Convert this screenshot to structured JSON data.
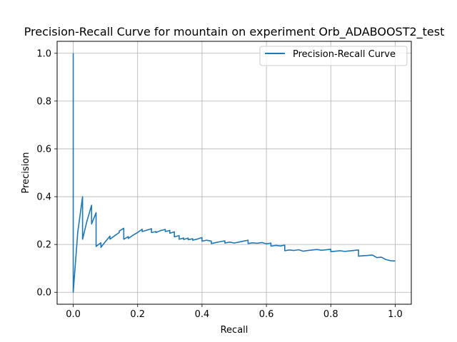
{
  "chart_data": {
    "type": "line",
    "title": "Precision-Recall Curve for mountain on experiment Orb_ADABOOST2_test",
    "xlabel": "Recall",
    "ylabel": "Precision",
    "xlim": [
      -0.05,
      1.05
    ],
    "ylim": [
      -0.05,
      1.05
    ],
    "xticks": [
      0.0,
      0.2,
      0.4,
      0.6,
      0.8,
      1.0
    ],
    "xtick_labels": [
      "0.0",
      "0.2",
      "0.4",
      "0.6",
      "0.8",
      "1.0"
    ],
    "yticks": [
      0.0,
      0.2,
      0.4,
      0.6,
      0.8,
      1.0
    ],
    "ytick_labels": [
      "0.0",
      "0.2",
      "0.4",
      "0.6",
      "0.8",
      "1.0"
    ],
    "grid": true,
    "legend_position": "top-right",
    "series": [
      {
        "name": "Precision-Recall Curve",
        "color": "#1f77b4",
        "x": [
          0.0,
          0.0,
          0.0,
          0.014,
          0.029,
          0.029,
          0.043,
          0.057,
          0.057,
          0.071,
          0.071,
          0.086,
          0.086,
          0.1,
          0.114,
          0.114,
          0.129,
          0.143,
          0.143,
          0.157,
          0.157,
          0.171,
          0.171,
          0.186,
          0.2,
          0.214,
          0.214,
          0.229,
          0.243,
          0.243,
          0.257,
          0.257,
          0.271,
          0.286,
          0.286,
          0.3,
          0.3,
          0.314,
          0.314,
          0.329,
          0.329,
          0.343,
          0.343,
          0.357,
          0.357,
          0.371,
          0.371,
          0.386,
          0.4,
          0.4,
          0.414,
          0.429,
          0.429,
          0.443,
          0.457,
          0.471,
          0.471,
          0.486,
          0.5,
          0.514,
          0.529,
          0.543,
          0.543,
          0.557,
          0.571,
          0.586,
          0.6,
          0.614,
          0.614,
          0.629,
          0.643,
          0.657,
          0.657,
          0.671,
          0.686,
          0.7,
          0.714,
          0.729,
          0.743,
          0.757,
          0.771,
          0.786,
          0.8,
          0.8,
          0.814,
          0.829,
          0.843,
          0.857,
          0.871,
          0.886,
          0.886,
          0.9,
          0.914,
          0.929,
          0.943,
          0.957,
          0.971,
          0.986,
          1.0
        ],
        "y": [
          1.0,
          0.0,
          0.0,
          0.25,
          0.4,
          0.222,
          0.3,
          0.364,
          0.286,
          0.333,
          0.192,
          0.207,
          0.188,
          0.212,
          0.235,
          0.222,
          0.237,
          0.25,
          0.256,
          0.268,
          0.222,
          0.233,
          0.225,
          0.239,
          0.25,
          0.264,
          0.254,
          0.26,
          0.266,
          0.25,
          0.254,
          0.25,
          0.258,
          0.263,
          0.254,
          0.259,
          0.247,
          0.253,
          0.232,
          0.237,
          0.222,
          0.227,
          0.221,
          0.227,
          0.22,
          0.224,
          0.218,
          0.223,
          0.229,
          0.214,
          0.218,
          0.214,
          0.204,
          0.208,
          0.212,
          0.215,
          0.206,
          0.21,
          0.206,
          0.21,
          0.214,
          0.218,
          0.204,
          0.207,
          0.205,
          0.208,
          0.203,
          0.206,
          0.193,
          0.196,
          0.194,
          0.197,
          0.174,
          0.177,
          0.175,
          0.178,
          0.172,
          0.175,
          0.177,
          0.179,
          0.176,
          0.178,
          0.18,
          0.17,
          0.172,
          0.174,
          0.171,
          0.173,
          0.175,
          0.177,
          0.151,
          0.153,
          0.154,
          0.156,
          0.145,
          0.147,
          0.137,
          0.132,
          0.131
        ]
      }
    ]
  }
}
